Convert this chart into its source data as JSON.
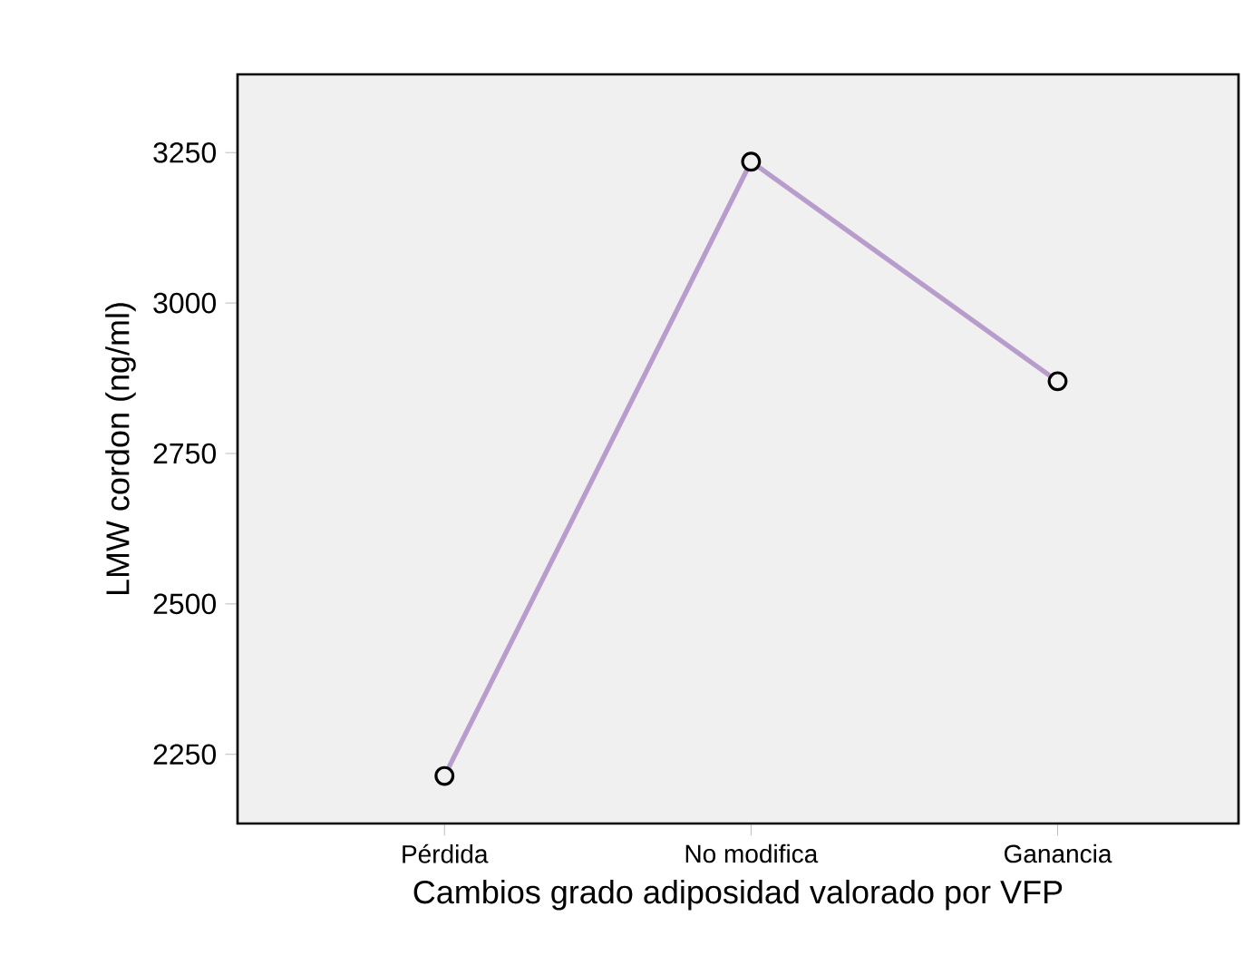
{
  "chart_data": {
    "type": "line",
    "xlabel": "Cambios grado adiposidad valorado por VFP",
    "ylabel": "LMW cordon (ng/ml)",
    "categories": [
      "Pérdida",
      "No modifica",
      "Ganancia"
    ],
    "series": [
      {
        "color": "#b89ccc",
        "values": [
          2214,
          3235,
          2870
        ]
      }
    ],
    "ylim": [
      2135,
      3380
    ],
    "yticks": [
      2250,
      2500,
      2750,
      3000,
      3250
    ],
    "grid": false,
    "marker": "circle",
    "line_style": "solid"
  }
}
